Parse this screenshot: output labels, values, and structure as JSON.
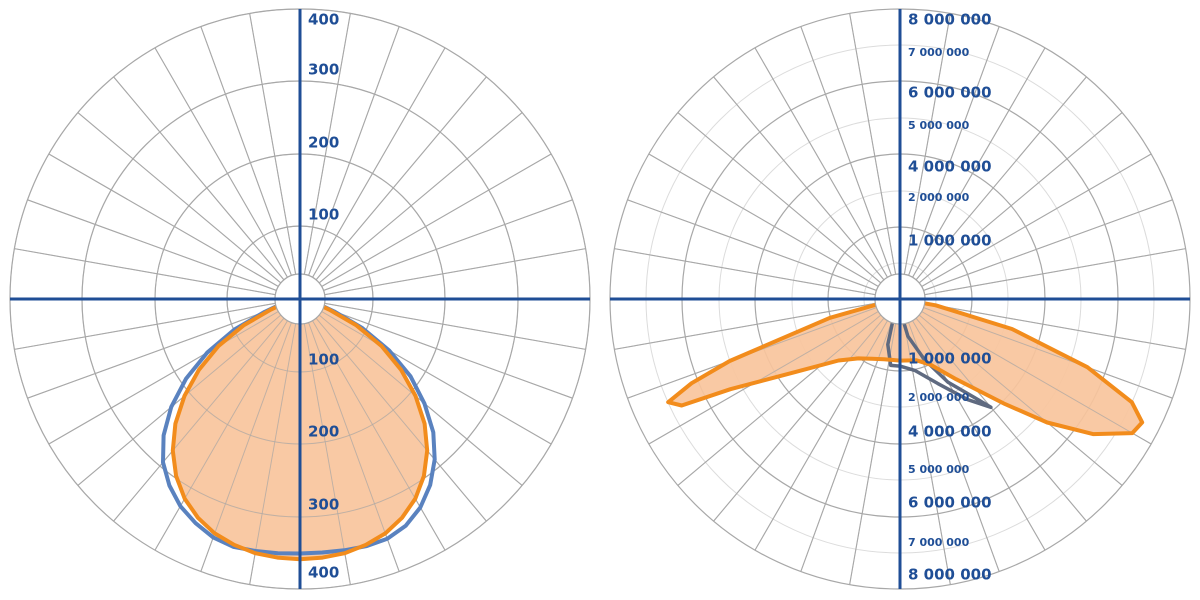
{
  "colors": {
    "grid": "#a8a8a8",
    "grid_minor": "#dcdcdc",
    "axis": "#1f4e96",
    "tick_label": "#1f4e96",
    "fill_orange": "#f8c49c",
    "line_orange": "#f28c1c",
    "line_blue": "#5a82bf",
    "line_slate": "#5f6a80"
  },
  "chart_data": [
    {
      "type": "polar",
      "description_angles": "angle in degrees from straight down (nadir), positive toward the right",
      "r_range": [
        0,
        400
      ],
      "grid": true,
      "tick_labels": [
        "100",
        "200",
        "300",
        "400"
      ],
      "series": [
        {
          "style": "orange-filled",
          "points": [
            [
              -90,
              0
            ],
            [
              -80,
              12
            ],
            [
              -75,
              22
            ],
            [
              -70,
              43
            ],
            [
              -65,
              86
            ],
            [
              -60,
              130
            ],
            [
              -55,
              170
            ],
            [
              -50,
              208
            ],
            [
              -45,
              243
            ],
            [
              -40,
              273
            ],
            [
              -35,
              298
            ],
            [
              -30,
              318
            ],
            [
              -25,
              333
            ],
            [
              -20,
              344
            ],
            [
              -15,
              351
            ],
            [
              -10,
              356
            ],
            [
              -5,
              358
            ],
            [
              0,
              359
            ],
            [
              5,
              358
            ],
            [
              10,
              356
            ],
            [
              15,
              351
            ],
            [
              20,
              344
            ],
            [
              25,
              333
            ],
            [
              30,
              318
            ],
            [
              35,
              298
            ],
            [
              40,
              273
            ],
            [
              45,
              243
            ],
            [
              50,
              208
            ],
            [
              55,
              170
            ],
            [
              60,
              130
            ],
            [
              65,
              86
            ],
            [
              70,
              43
            ],
            [
              75,
              22
            ],
            [
              80,
              12
            ],
            [
              90,
              0
            ]
          ]
        },
        {
          "style": "blue-line",
          "points": [
            [
              -90,
              0
            ],
            [
              -80,
              14
            ],
            [
              -75,
              27
            ],
            [
              -70,
              52
            ],
            [
              -65,
              100
            ],
            [
              -60,
              148
            ],
            [
              -55,
              192
            ],
            [
              -50,
              232
            ],
            [
              -45,
              266
            ],
            [
              -40,
              294
            ],
            [
              -35,
              314
            ],
            [
              -30,
              330
            ],
            [
              -25,
              341
            ],
            [
              -20,
              350
            ],
            [
              -15,
              354
            ],
            [
              -10,
              353
            ],
            [
              -5,
              352
            ],
            [
              0,
              351
            ],
            [
              5,
              351
            ],
            [
              10,
              352
            ],
            [
              15,
              353
            ],
            [
              20,
              352
            ],
            [
              25,
              345
            ],
            [
              30,
              332
            ],
            [
              35,
              313
            ],
            [
              40,
              289
            ],
            [
              45,
              260
            ],
            [
              50,
              224
            ],
            [
              55,
              186
            ],
            [
              60,
              142
            ],
            [
              65,
              95
            ],
            [
              70,
              50
            ],
            [
              75,
              26
            ],
            [
              80,
              14
            ],
            [
              90,
              0
            ]
          ]
        }
      ]
    },
    {
      "type": "polar",
      "description_angles": "angle in degrees from straight down (nadir), positive toward the right",
      "r_range": [
        0,
        8000000
      ],
      "grid": true,
      "tick_labels_major": [
        "1 000 000",
        "4 000 000",
        "6 000 000",
        "8 000 000"
      ],
      "tick_labels_minor": [
        "2 000 000",
        "5 000 000",
        "7 000 000"
      ],
      "series": [
        {
          "style": "orange-filled",
          "points": [
            [
              -90,
              0
            ],
            [
              -80,
              300000
            ],
            [
              -75,
              2000000
            ],
            [
              -70,
              5000000
            ],
            [
              -68,
              6200000
            ],
            [
              -66,
              7000000
            ],
            [
              -64,
              6700000
            ],
            [
              -62,
              5300000
            ],
            [
              -55,
              3500000
            ],
            [
              -45,
              2400000
            ],
            [
              -35,
              2000000
            ],
            [
              -25,
              1820000
            ],
            [
              -15,
              1720000
            ],
            [
              0,
              1700000
            ],
            [
              15,
              1750000
            ],
            [
              25,
              2000000
            ],
            [
              35,
              2700000
            ],
            [
              45,
              4100000
            ],
            [
              50,
              5300000
            ],
            [
              55,
              6500000
            ],
            [
              60,
              7400000
            ],
            [
              63,
              7500000
            ],
            [
              66,
              7000000
            ],
            [
              70,
              5500000
            ],
            [
              75,
              3200000
            ],
            [
              80,
              1000000
            ],
            [
              90,
              0
            ]
          ]
        },
        {
          "style": "slate-line",
          "points": [
            [
              -25,
              300000
            ],
            [
              -15,
              1300000
            ],
            [
              -8,
              1850000
            ],
            [
              0,
              1850000
            ],
            [
              12,
              2020000
            ],
            [
              24,
              2550000
            ],
            [
              34,
              3350000
            ],
            [
              40,
              3900000
            ],
            [
              37,
              3400000
            ],
            [
              30,
              2650000
            ],
            [
              22,
              1800000
            ],
            [
              12,
              1050000
            ],
            [
              0,
              300000
            ]
          ]
        }
      ]
    }
  ]
}
